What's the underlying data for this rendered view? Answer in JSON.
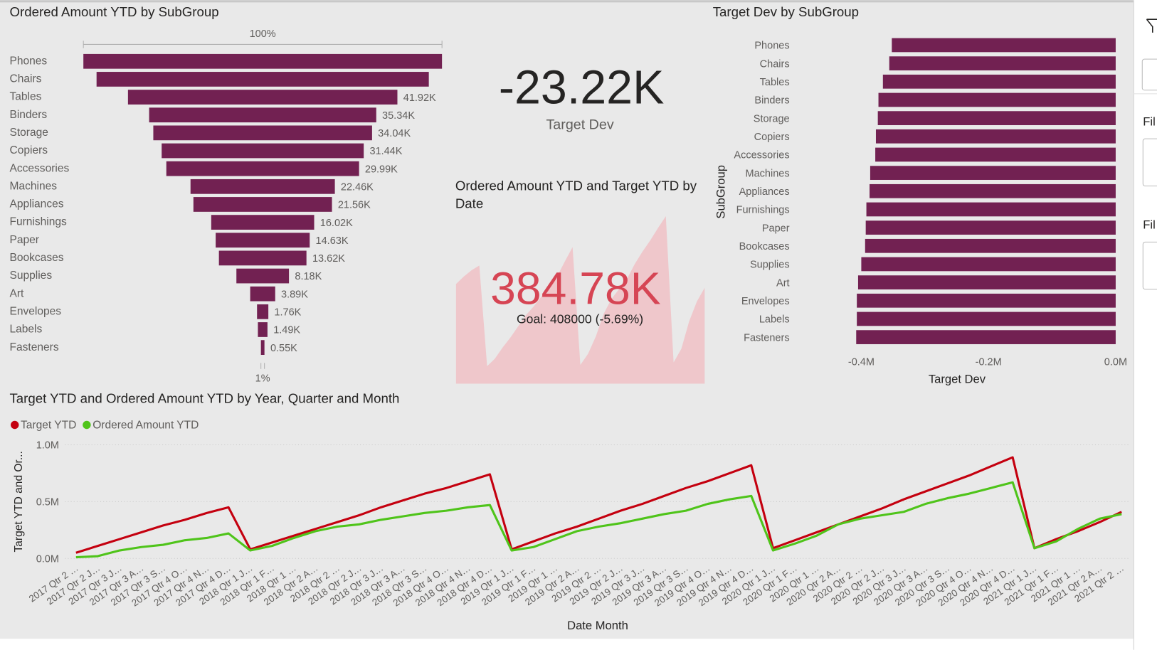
{
  "chart_data": [
    {
      "type": "funnel",
      "title": "Ordered Amount YTD by SubGroup",
      "categories": [
        "Phones",
        "Chairs",
        "Tables",
        "Binders",
        "Storage",
        "Copiers",
        "Accessories",
        "Machines",
        "Appliances",
        "Furnishings",
        "Paper",
        "Bookcases",
        "Supplies",
        "Art",
        "Envelopes",
        "Labels",
        "Fasteners"
      ],
      "values": [
        55.8,
        51.7,
        41.92,
        35.34,
        34.04,
        31.44,
        29.99,
        22.46,
        21.56,
        16.02,
        14.63,
        13.62,
        8.18,
        3.89,
        1.76,
        1.49,
        0.55
      ],
      "value_labels": [
        null,
        null,
        "41.92K",
        "35.34K",
        "34.04K",
        "31.44K",
        "29.99K",
        "22.46K",
        "21.56K",
        "16.02K",
        "14.63K",
        "13.62K",
        "8.18K",
        "3.89K",
        "1.76K",
        "1.49K",
        "0.55K"
      ],
      "top_label": "100%",
      "bottom_label": "1%",
      "color": "#722152"
    },
    {
      "type": "card",
      "value": -23.22,
      "value_label": "-23.22K",
      "label": "Target Dev"
    },
    {
      "type": "kpi",
      "title": "Ordered Amount YTD and Target YTD by Date",
      "value": 384.78,
      "value_label": "384.78K",
      "goal_label": "Goal: 408000 (-5.69%)",
      "color": "#d64554",
      "trend_color": "#efc7cb",
      "trend": [
        400,
        430,
        455,
        474,
        70,
        100,
        145,
        185,
        230,
        275,
        310,
        350,
        395,
        430,
        490,
        548,
        75,
        120,
        190,
        280,
        340,
        380,
        420,
        480,
        530,
        575,
        625,
        672,
        85,
        140,
        250,
        330,
        384.78
      ]
    },
    {
      "type": "hbar",
      "title": "Target Dev by SubGroup",
      "x_label": "Target Dev",
      "y_label": "SubGroup",
      "categories": [
        "Phones",
        "Chairs",
        "Tables",
        "Binders",
        "Storage",
        "Copiers",
        "Accessories",
        "Machines",
        "Appliances",
        "Furnishings",
        "Paper",
        "Bookcases",
        "Supplies",
        "Art",
        "Envelopes",
        "Labels",
        "Fasteners"
      ],
      "values": [
        -0.352,
        -0.356,
        -0.366,
        -0.373,
        -0.374,
        -0.377,
        -0.378,
        -0.386,
        -0.387,
        -0.392,
        -0.393,
        -0.394,
        -0.4,
        -0.405,
        -0.407,
        -0.407,
        -0.408
      ],
      "xlim": [
        -0.42,
        0
      ],
      "xticks": [
        {
          "value": -0.4,
          "label": "-0.4M"
        },
        {
          "value": -0.2,
          "label": "-0.2M"
        },
        {
          "value": 0,
          "label": "0.0M"
        }
      ],
      "color": "#722152"
    },
    {
      "type": "line",
      "title": "Target YTD and Ordered Amount YTD by Year, Quarter and Month",
      "x_label": "Date Month",
      "y_label": "Target YTD and Or...",
      "categories": [
        "2017 Qtr 2 …",
        "2017 Qtr 2 J…",
        "2017 Qtr 3 J…",
        "2017 Qtr 3 A…",
        "2017 Qtr 3 S…",
        "2017 Qtr 4 O…",
        "2017 Qtr 4 N…",
        "2017 Qtr 4 D…",
        "2018 Qtr 1 J…",
        "2018 Qtr 1 F…",
        "2018 Qtr 1 …",
        "2018 Qtr 2 A…",
        "2018 Qtr 2 …",
        "2018 Qtr 2 J…",
        "2018 Qtr 3 J…",
        "2018 Qtr 3 A…",
        "2018 Qtr 3 S…",
        "2018 Qtr 4 O…",
        "2018 Qtr 4 N…",
        "2018 Qtr 4 D…",
        "2019 Qtr 1 J…",
        "2019 Qtr 1 F…",
        "2019 Qtr 1 …",
        "2019 Qtr 2 A…",
        "2019 Qtr 2 …",
        "2019 Qtr 2 J…",
        "2019 Qtr 3 J…",
        "2019 Qtr 3 A…",
        "2019 Qtr 3 S…",
        "2019 Qtr 4 O…",
        "2019 Qtr 4 N…",
        "2019 Qtr 4 D…",
        "2020 Qtr 1 J…",
        "2020 Qtr 1 F…",
        "2020 Qtr 1 …",
        "2020 Qtr 2 A…",
        "2020 Qtr 2 …",
        "2020 Qtr 2 J…",
        "2020 Qtr 3 J…",
        "2020 Qtr 3 A…",
        "2020 Qtr 3 S…",
        "2020 Qtr 4 O…",
        "2020 Qtr 4 N…",
        "2020 Qtr 4 D…",
        "2021 Qtr 1 J…",
        "2021 Qtr 1 F…",
        "2021 Qtr 1 …",
        "2021 Qtr 2 A…",
        "2021 Qtr 2 …"
      ],
      "series": [
        {
          "name": "Target YTD",
          "color": "#c4000f",
          "values": [
            0.05,
            0.11,
            0.17,
            0.23,
            0.29,
            0.34,
            0.4,
            0.45,
            0.08,
            0.14,
            0.2,
            0.26,
            0.32,
            0.38,
            0.45,
            0.51,
            0.57,
            0.62,
            0.68,
            0.74,
            0.08,
            0.15,
            0.22,
            0.28,
            0.35,
            0.42,
            0.48,
            0.55,
            0.62,
            0.68,
            0.75,
            0.82,
            0.09,
            0.16,
            0.23,
            0.3,
            0.37,
            0.44,
            0.52,
            0.59,
            0.66,
            0.73,
            0.81,
            0.89,
            0.09,
            0.17,
            0.24,
            0.32,
            0.41
          ]
        },
        {
          "name": "Ordered Amount YTD",
          "color": "#4fc41a",
          "values": [
            0.01,
            0.02,
            0.07,
            0.1,
            0.12,
            0.16,
            0.18,
            0.22,
            0.07,
            0.11,
            0.18,
            0.24,
            0.28,
            0.3,
            0.34,
            0.37,
            0.4,
            0.42,
            0.45,
            0.47,
            0.07,
            0.1,
            0.17,
            0.24,
            0.28,
            0.31,
            0.35,
            0.39,
            0.42,
            0.48,
            0.52,
            0.55,
            0.07,
            0.13,
            0.2,
            0.3,
            0.35,
            0.38,
            0.41,
            0.48,
            0.53,
            0.57,
            0.62,
            0.67,
            0.09,
            0.15,
            0.26,
            0.35,
            0.39
          ]
        }
      ],
      "ylim": [
        0,
        1.0
      ],
      "yticks": [
        {
          "value": 0,
          "label": "0.0M"
        },
        {
          "value": 0.5,
          "label": "0.5M"
        },
        {
          "value": 1.0,
          "label": "1.0M"
        }
      ],
      "grid": true
    }
  ],
  "filter_pane": {
    "labels": [
      "Fil",
      "Fil"
    ]
  }
}
